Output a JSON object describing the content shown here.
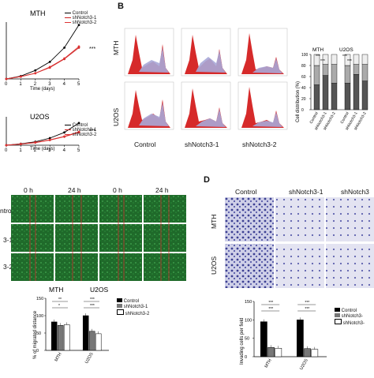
{
  "panelA": {
    "charts": [
      {
        "title": "MTH",
        "type": "line",
        "x": [
          0,
          1,
          2,
          3,
          4,
          5
        ],
        "xlabel": "Time (days)",
        "legend": [
          "Control",
          "shNotch3-1",
          "shNotch3-2"
        ],
        "series": [
          {
            "name": "Control",
            "values": [
              0,
              0.05,
              0.15,
              0.3,
              0.55,
              0.95
            ]
          },
          {
            "name": "shNotch3-1",
            "values": [
              0,
              0.04,
              0.1,
              0.2,
              0.35,
              0.55
            ]
          },
          {
            "name": "shNotch3-2",
            "values": [
              0,
              0.04,
              0.1,
              0.21,
              0.36,
              0.57
            ]
          }
        ],
        "sig": "***"
      },
      {
        "title": "U2OS",
        "type": "line",
        "x": [
          0,
          1,
          2,
          3,
          4,
          5
        ],
        "xlabel": "Time (days)",
        "legend": [
          "Control",
          "shNotch3-1",
          "shNotch3-2"
        ],
        "series": [
          {
            "name": "Control",
            "values": [
              0,
              0.05,
              0.12,
              0.25,
              0.45,
              0.78
            ]
          },
          {
            "name": "shNotch3-1",
            "values": [
              0,
              0.04,
              0.09,
              0.18,
              0.3,
              0.45
            ]
          },
          {
            "name": "shNotch3-2",
            "values": [
              0,
              0.04,
              0.1,
              0.19,
              0.31,
              0.47
            ]
          }
        ],
        "sig": "***"
      }
    ]
  },
  "panelB": {
    "letter": "B",
    "row_labels": [
      "MTH",
      "U2OS"
    ],
    "col_labels": [
      "Control",
      "shNotch3-1",
      "shNotch3-2"
    ],
    "bar_chart": {
      "type": "bar",
      "ylabel": "Cell distribution (%)",
      "ylim": [
        0,
        100
      ],
      "yticks": [
        "0",
        "20",
        "40",
        "60",
        "80",
        "100"
      ],
      "group_titles": [
        "MTH",
        "U2OS"
      ],
      "categories": [
        "Control",
        "shNotch3-1",
        "shNotch3-2",
        "Control",
        "shNotch3-1",
        "shNotch3-2"
      ],
      "series": [
        {
          "values": [
            45,
            62,
            48,
            48,
            64,
            52
          ]
        },
        {
          "values": [
            35,
            20,
            34,
            32,
            18,
            30
          ]
        },
        {
          "values": [
            20,
            18,
            18,
            20,
            18,
            18
          ]
        }
      ],
      "sig": [
        "***",
        "***",
        "***",
        "***"
      ]
    }
  },
  "panelC": {
    "time_labels": [
      "0 h",
      "24 h",
      "0 h",
      "24 h"
    ],
    "row_labels": [
      "ntrol",
      "3-1",
      "3-2"
    ],
    "bar_chart": {
      "type": "bar",
      "groups": [
        "MTH",
        "U2OS"
      ],
      "ylabel": "% of migrated distance",
      "ylim": [
        0,
        150
      ],
      "yticks": [
        "0",
        "50",
        "100",
        "150"
      ],
      "legend": [
        "Control",
        "shNotch3-1",
        "shNotch3-2"
      ],
      "series": [
        {
          "name": "Control",
          "values": [
            82,
            100
          ]
        },
        {
          "name": "shNotch3-1",
          "values": [
            72,
            55
          ]
        },
        {
          "name": "shNotch3-2",
          "values": [
            74,
            48
          ]
        }
      ],
      "sig": [
        "**",
        "*",
        "***",
        "***"
      ]
    }
  },
  "panelD": {
    "letter": "D",
    "col_labels": [
      "Control",
      "shNotch3-1",
      "shNotch3"
    ],
    "row_labels": [
      "MTH",
      "U2OS"
    ],
    "bar_chart": {
      "type": "bar",
      "groups": [
        "MTH",
        "U2OS"
      ],
      "ylabel": "Invading cells per field",
      "ylim": [
        0,
        150
      ],
      "yticks": [
        "0",
        "50",
        "100",
        "150"
      ],
      "legend": [
        "Control",
        "shNotch3-",
        "shNotch3-"
      ],
      "series": [
        {
          "name": "Control",
          "values": [
            95,
            100
          ]
        },
        {
          "name": "shNotch3-",
          "values": [
            25,
            22
          ]
        },
        {
          "name": "shNotch3-",
          "values": [
            23,
            20
          ]
        }
      ],
      "sig": [
        "***",
        "***",
        "***",
        "***"
      ]
    }
  }
}
